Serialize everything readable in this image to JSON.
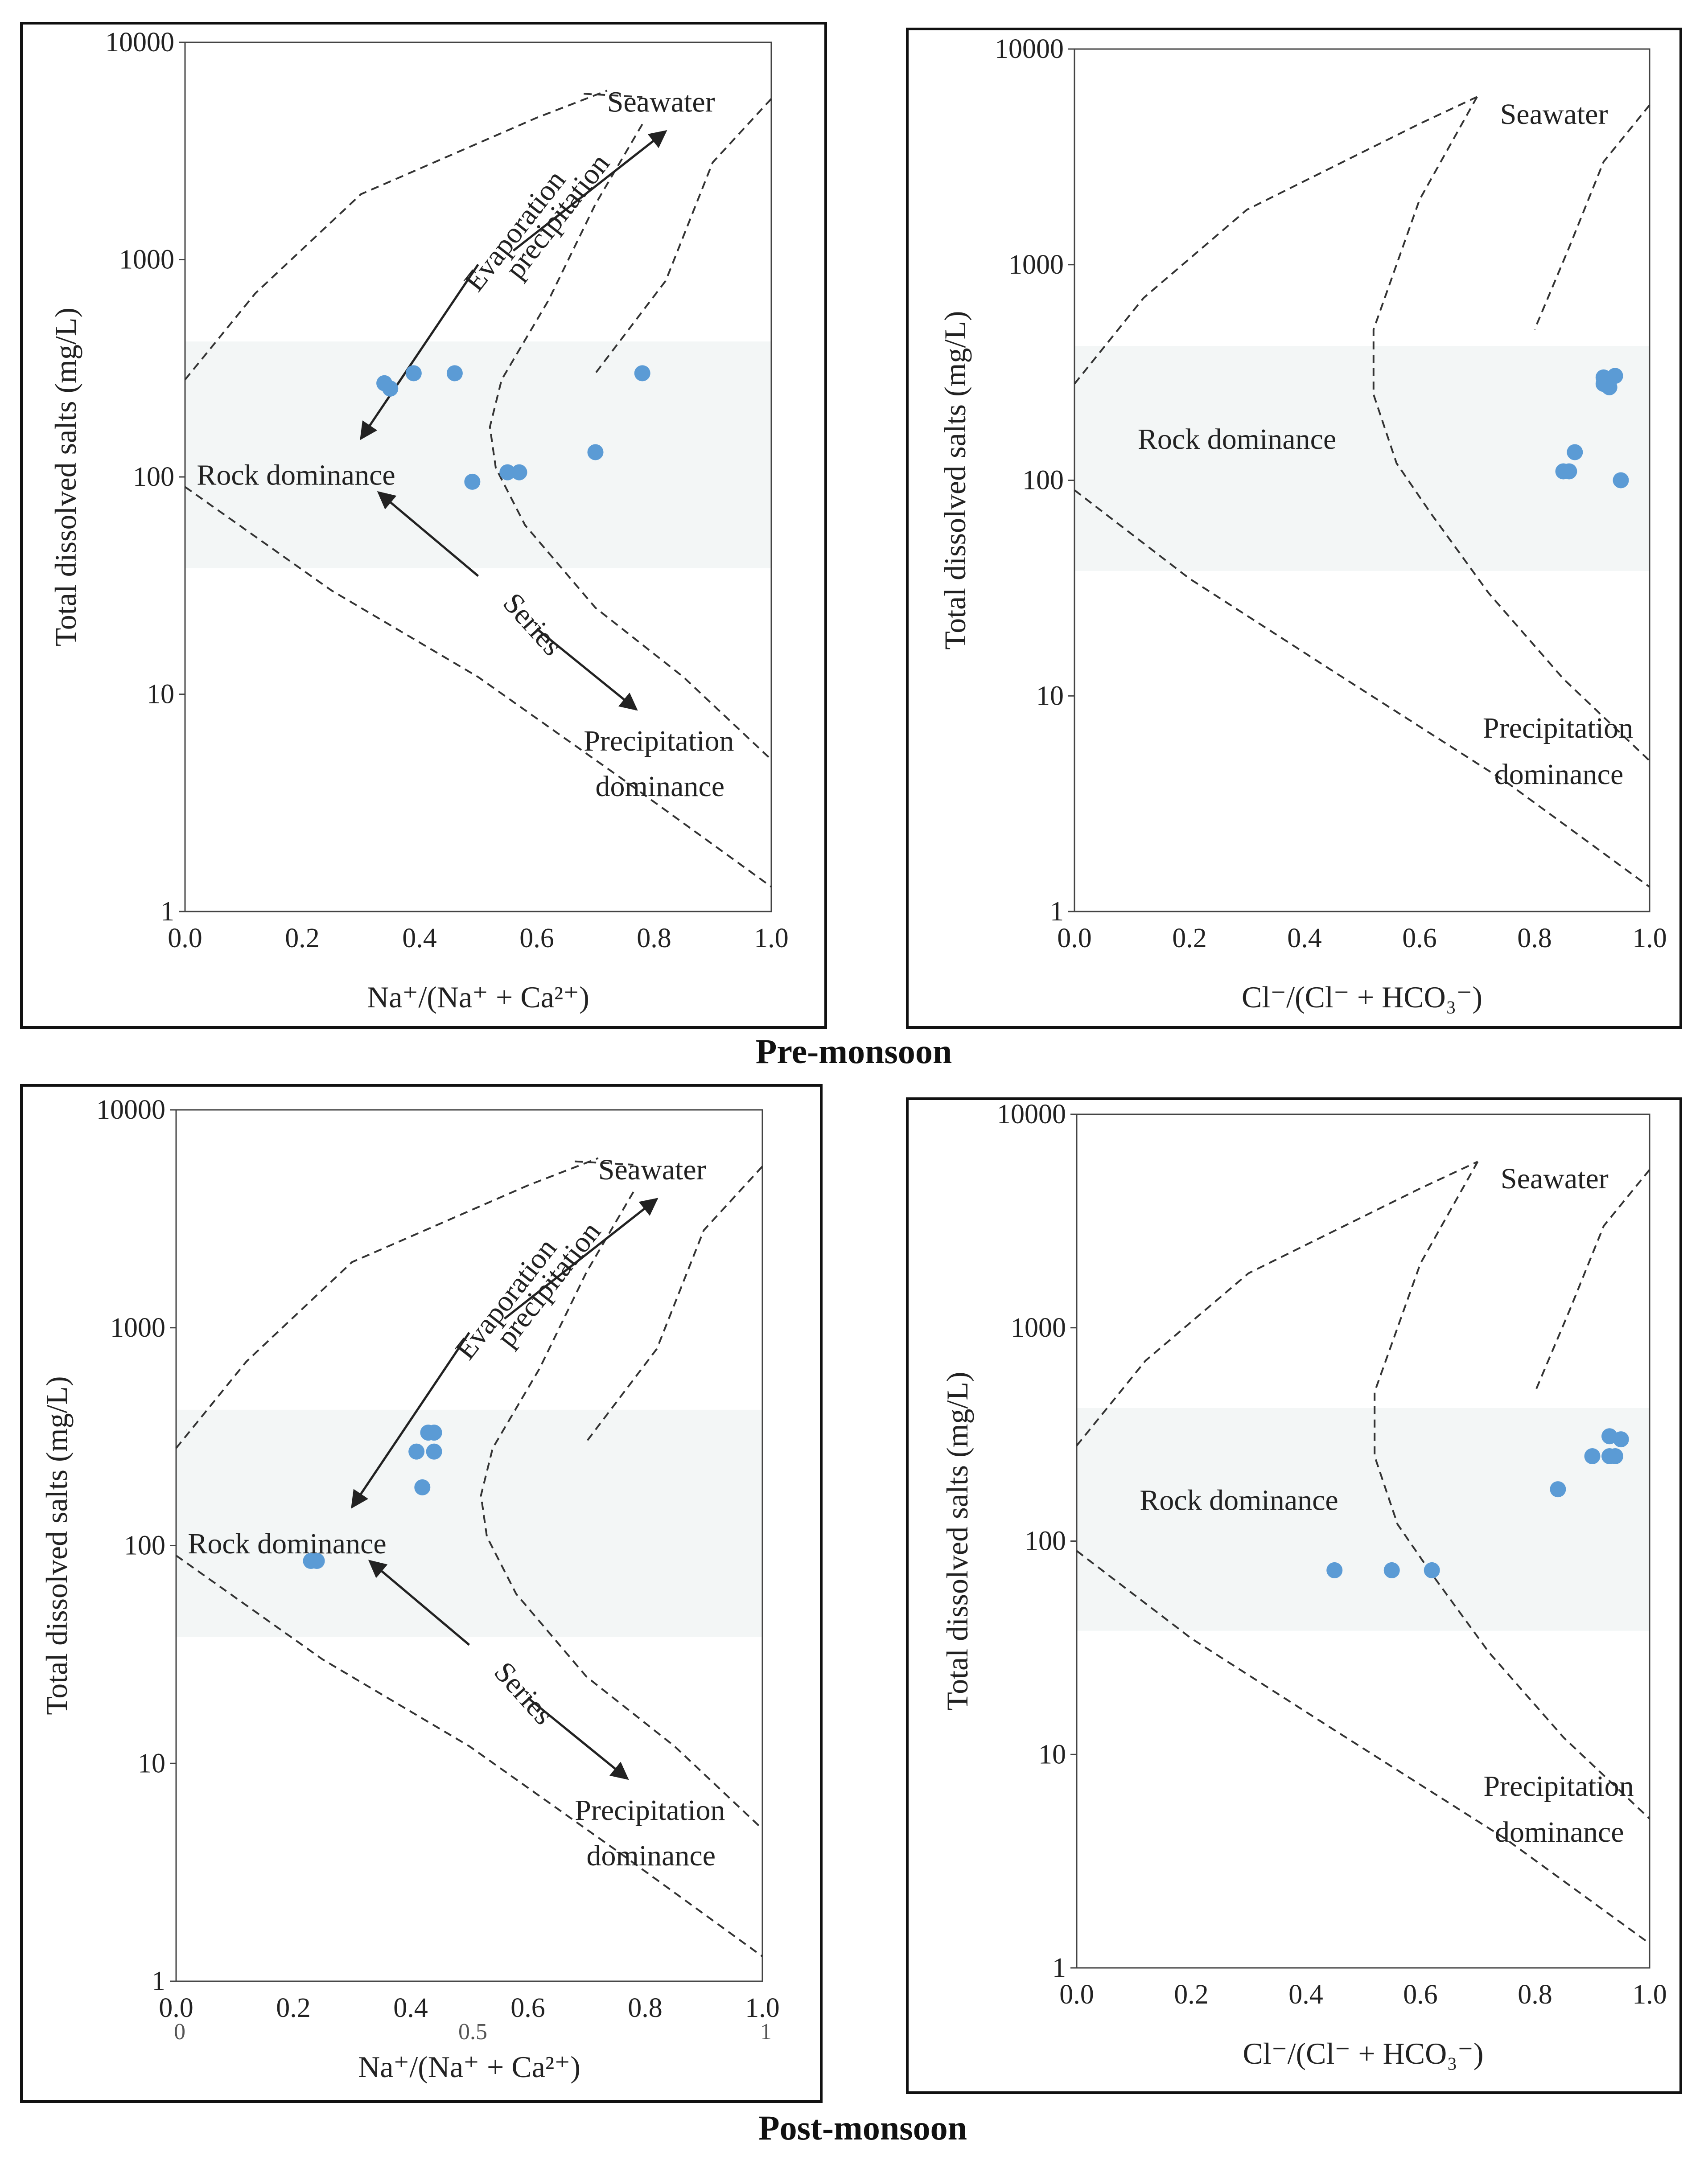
{
  "captions": [
    "Pre-monsoon",
    "Post-monsoon"
  ],
  "chart_data": [
    {
      "type": "scatter",
      "panel": "pre-monsoon-cation",
      "xlabel": "Na⁺/(Na⁺ + Ca²⁺)",
      "ylabel": "Total dissolved salts (mg/L)",
      "xlim": [
        0,
        1
      ],
      "ylim": [
        1,
        10000
      ],
      "y_scale": "log",
      "x_ticks": [
        "0.0",
        "0.2",
        "0.4",
        "0.6",
        "0.8",
        "1.0"
      ],
      "y_ticks": [
        "1",
        "10",
        "100",
        "1000",
        "10000"
      ],
      "annotations": [
        "Seawater",
        "Evaporation",
        "precipitation",
        "Rock dominance",
        "Series",
        "Precipitation",
        "dominance"
      ],
      "points": [
        [
          0.34,
          270
        ],
        [
          0.35,
          255
        ],
        [
          0.39,
          300
        ],
        [
          0.46,
          300
        ],
        [
          0.49,
          95
        ],
        [
          0.55,
          105
        ],
        [
          0.57,
          105
        ],
        [
          0.7,
          130
        ],
        [
          0.78,
          300
        ]
      ]
    },
    {
      "type": "scatter",
      "panel": "pre-monsoon-anion",
      "xlabel": "Cl⁻/(Cl⁻ + HCO₃⁻)",
      "ylabel": "Total dissolved salts (mg/L)",
      "xlim": [
        0,
        1
      ],
      "ylim": [
        1,
        10000
      ],
      "y_scale": "log",
      "x_ticks": [
        "0.0",
        "0.2",
        "0.4",
        "0.6",
        "0.8",
        "1.0"
      ],
      "y_ticks": [
        "1",
        "10",
        "100",
        "1000",
        "10000"
      ],
      "annotations": [
        "Seawater",
        "Rock dominance",
        "Precipitation",
        "dominance"
      ],
      "points": [
        [
          0.85,
          110
        ],
        [
          0.86,
          110
        ],
        [
          0.87,
          135
        ],
        [
          0.92,
          300
        ],
        [
          0.92,
          280
        ],
        [
          0.93,
          270
        ],
        [
          0.94,
          305
        ],
        [
          0.95,
          100
        ]
      ]
    },
    {
      "type": "scatter",
      "panel": "post-monsoon-cation",
      "xlabel": "Na⁺/(Na⁺ + Ca²⁺)",
      "ylabel": "Total dissolved salts (mg/L)",
      "xlim": [
        0,
        1
      ],
      "ylim": [
        1,
        10000
      ],
      "y_scale": "log",
      "x_ticks": [
        "0.0",
        "0.2",
        "0.4",
        "0.6",
        "0.8",
        "1.0"
      ],
      "y_ticks": [
        "1",
        "10",
        "100",
        "1000",
        "10000"
      ],
      "extra_ticks": [
        "0",
        "0.5",
        "1"
      ],
      "annotations": [
        "Seawater",
        "Evaporation",
        "precipitation",
        "Rock dominance",
        "Series",
        "Precipitation",
        "dominance"
      ],
      "points": [
        [
          0.23,
          85
        ],
        [
          0.24,
          85
        ],
        [
          0.41,
          270
        ],
        [
          0.42,
          185
        ],
        [
          0.43,
          330
        ],
        [
          0.44,
          330
        ],
        [
          0.44,
          270
        ]
      ]
    },
    {
      "type": "scatter",
      "panel": "post-monsoon-anion",
      "xlabel": "Cl⁻/(Cl⁻ + HCO₃⁻)",
      "ylabel": "Total dissolved salts (mg/L)",
      "xlim": [
        0,
        1
      ],
      "ylim": [
        1,
        10000
      ],
      "y_scale": "log",
      "x_ticks": [
        "0.0",
        "0.2",
        "0.4",
        "0.6",
        "0.8",
        "1.0"
      ],
      "y_ticks": [
        "1",
        "10",
        "100",
        "1000",
        "10000"
      ],
      "annotations": [
        "Seawater",
        "Rock dominance",
        "Precipitation",
        "dominance"
      ],
      "points": [
        [
          0.45,
          73
        ],
        [
          0.55,
          73
        ],
        [
          0.62,
          73
        ],
        [
          0.84,
          175
        ],
        [
          0.9,
          250
        ],
        [
          0.93,
          310
        ],
        [
          0.93,
          250
        ],
        [
          0.94,
          250
        ],
        [
          0.95,
          300
        ]
      ]
    }
  ],
  "colors": {
    "point": "#5b9bd5",
    "band": "#f3f6f6",
    "ink": "#222222"
  }
}
